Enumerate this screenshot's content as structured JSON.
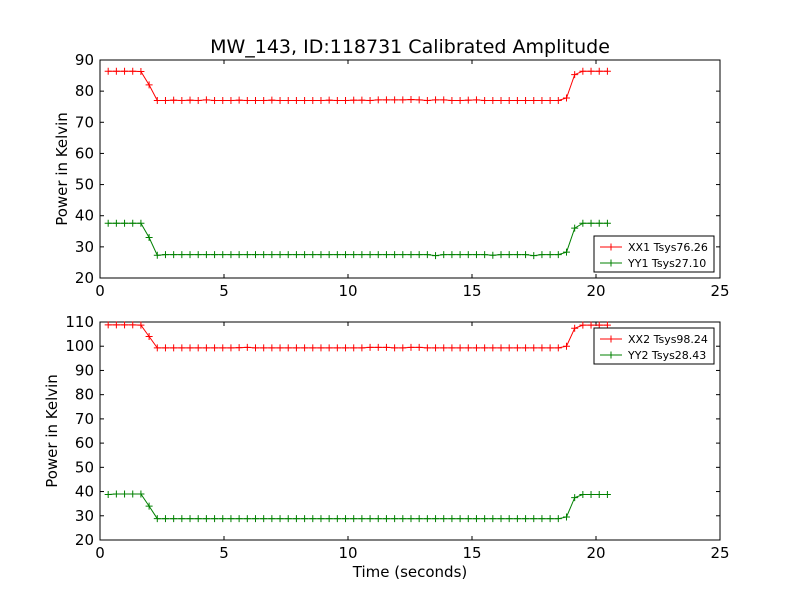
{
  "chart_data": [
    {
      "type": "line",
      "title": "MW_143, ID:118731 Calibrated Amplitude",
      "xlabel": "",
      "ylabel": "Power in Kelvin",
      "xlim": [
        0,
        25
      ],
      "ylim": [
        20,
        90
      ],
      "xticks": [
        0,
        5,
        10,
        15,
        20,
        25
      ],
      "yticks": [
        20,
        30,
        40,
        50,
        60,
        70,
        80,
        90
      ],
      "grid": false,
      "legend_position": "lower-right",
      "x": [
        0.33,
        0.66,
        0.99,
        1.32,
        1.65,
        1.98,
        2.31,
        2.64,
        2.97,
        3.3,
        3.63,
        3.96,
        4.29,
        4.62,
        4.95,
        5.28,
        5.61,
        5.94,
        6.27,
        6.6,
        6.93,
        7.26,
        7.59,
        7.92,
        8.25,
        8.58,
        8.91,
        9.24,
        9.57,
        9.9,
        10.23,
        10.56,
        10.89,
        11.22,
        11.55,
        11.88,
        12.21,
        12.54,
        12.87,
        13.2,
        13.53,
        13.86,
        14.19,
        14.52,
        14.85,
        15.18,
        15.51,
        15.84,
        16.17,
        16.5,
        16.83,
        17.16,
        17.49,
        17.82,
        18.15,
        18.48,
        18.81,
        19.14,
        19.47,
        19.8,
        20.13,
        20.46
      ],
      "series": [
        {
          "name": "XX1 Tsys76.26",
          "color": "#ff0000",
          "values": [
            86.4,
            86.4,
            86.4,
            86.4,
            86.3,
            82.0,
            77.0,
            77.0,
            77.1,
            77.0,
            77.1,
            77.0,
            77.2,
            77.0,
            77.0,
            77.0,
            77.1,
            77.0,
            77.0,
            77.0,
            77.1,
            77.0,
            77.0,
            77.0,
            77.0,
            77.0,
            77.0,
            77.1,
            77.0,
            77.0,
            77.1,
            77.1,
            77.0,
            77.2,
            77.2,
            77.2,
            77.2,
            77.3,
            77.2,
            77.0,
            77.2,
            77.2,
            77.0,
            77.0,
            77.1,
            77.2,
            77.0,
            77.0,
            77.0,
            77.0,
            77.0,
            77.0,
            77.0,
            77.0,
            77.0,
            77.0,
            77.8,
            85.3,
            86.4,
            86.4,
            86.4,
            86.4
          ]
        },
        {
          "name": "YY1 Tsys27.10",
          "color": "#008000",
          "values": [
            37.6,
            37.6,
            37.6,
            37.6,
            37.6,
            33.0,
            27.3,
            27.5,
            27.5,
            27.5,
            27.5,
            27.5,
            27.5,
            27.5,
            27.5,
            27.5,
            27.5,
            27.5,
            27.5,
            27.5,
            27.5,
            27.5,
            27.5,
            27.5,
            27.5,
            27.5,
            27.5,
            27.5,
            27.5,
            27.5,
            27.5,
            27.5,
            27.5,
            27.5,
            27.5,
            27.5,
            27.5,
            27.5,
            27.5,
            27.5,
            27.2,
            27.5,
            27.5,
            27.5,
            27.5,
            27.5,
            27.5,
            27.3,
            27.5,
            27.5,
            27.5,
            27.5,
            27.2,
            27.5,
            27.5,
            27.5,
            28.3,
            36.0,
            37.6,
            37.6,
            37.6,
            37.6
          ]
        }
      ]
    },
    {
      "type": "line",
      "title": "",
      "xlabel": "Time (seconds)",
      "ylabel": "Power in Kelvin",
      "xlim": [
        0,
        25
      ],
      "ylim": [
        20,
        110
      ],
      "xticks": [
        0,
        5,
        10,
        15,
        20,
        25
      ],
      "yticks": [
        20,
        30,
        40,
        50,
        60,
        70,
        80,
        90,
        100,
        110
      ],
      "grid": false,
      "legend_position": "upper-right",
      "x": [
        0.33,
        0.66,
        0.99,
        1.32,
        1.65,
        1.98,
        2.31,
        2.64,
        2.97,
        3.3,
        3.63,
        3.96,
        4.29,
        4.62,
        4.95,
        5.28,
        5.61,
        5.94,
        6.27,
        6.6,
        6.93,
        7.26,
        7.59,
        7.92,
        8.25,
        8.58,
        8.91,
        9.24,
        9.57,
        9.9,
        10.23,
        10.56,
        10.89,
        11.22,
        11.55,
        11.88,
        12.21,
        12.54,
        12.87,
        13.2,
        13.53,
        13.86,
        14.19,
        14.52,
        14.85,
        15.18,
        15.51,
        15.84,
        16.17,
        16.5,
        16.83,
        17.16,
        17.49,
        17.82,
        18.15,
        18.48,
        18.81,
        19.14,
        19.47,
        19.8,
        20.13,
        20.46
      ],
      "series": [
        {
          "name": "XX2 Tsys98.24",
          "color": "#ff0000",
          "values": [
            108.8,
            108.8,
            108.8,
            108.8,
            108.7,
            104.0,
            99.3,
            99.3,
            99.3,
            99.3,
            99.3,
            99.3,
            99.3,
            99.3,
            99.3,
            99.3,
            99.4,
            99.5,
            99.3,
            99.3,
            99.3,
            99.3,
            99.3,
            99.3,
            99.3,
            99.3,
            99.3,
            99.3,
            99.3,
            99.3,
            99.3,
            99.3,
            99.5,
            99.5,
            99.5,
            99.3,
            99.3,
            99.5,
            99.5,
            99.3,
            99.3,
            99.3,
            99.3,
            99.3,
            99.3,
            99.3,
            99.3,
            99.3,
            99.3,
            99.3,
            99.3,
            99.3,
            99.3,
            99.3,
            99.3,
            99.3,
            100.0,
            107.4,
            108.7,
            108.7,
            108.7,
            108.7
          ]
        },
        {
          "name": "YY2 Tsys28.43",
          "color": "#008000",
          "values": [
            38.8,
            39.0,
            39.0,
            39.0,
            39.0,
            34.0,
            28.8,
            28.8,
            28.8,
            28.8,
            28.8,
            28.8,
            28.8,
            28.8,
            28.8,
            28.8,
            28.8,
            28.8,
            28.8,
            28.8,
            28.8,
            28.8,
            28.8,
            28.8,
            28.8,
            28.8,
            28.8,
            28.8,
            28.8,
            28.8,
            28.8,
            28.8,
            28.8,
            28.8,
            28.8,
            28.8,
            28.8,
            28.8,
            28.8,
            28.8,
            28.8,
            28.8,
            28.8,
            28.8,
            28.8,
            28.8,
            28.8,
            28.8,
            28.8,
            28.8,
            28.8,
            28.8,
            28.8,
            28.8,
            28.8,
            28.8,
            29.5,
            37.5,
            38.8,
            38.8,
            38.8,
            38.8
          ]
        }
      ]
    }
  ]
}
